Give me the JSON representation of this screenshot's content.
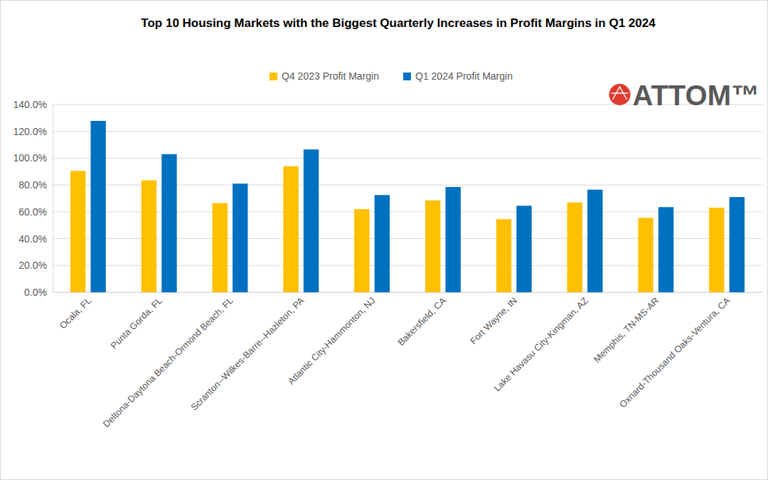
{
  "chart_data": {
    "type": "bar",
    "title": "Top 10 Housing Markets with the Biggest Quarterly Increases in Profit Margins in Q1 2024",
    "annotations": [
      "ATTOM™"
    ],
    "categories": [
      "Ocala, FL",
      "Punta Gorda, FL",
      "Deltona-Daytona Beach-Ormond Beach, FL",
      "Scranton--Wilkes-Barre--Hazleton, PA",
      "Atlantic City-Hammonton, NJ",
      "Bakersfield, CA",
      "Fort Wayne, IN",
      "Lake Havasu City-Kingman, AZ",
      "Memphis, TN-MS-AR",
      "Oxnard-Thousand Oaks-Ventura, CA"
    ],
    "series": [
      {
        "name": "Q4 2023 Profit Margin",
        "color": "#ffc000",
        "values": [
          90.5,
          83.5,
          66.5,
          94.0,
          62.0,
          68.5,
          54.5,
          67.0,
          55.5,
          63.0
        ]
      },
      {
        "name": "Q1 2024 Profit Margin",
        "color": "#0070c0",
        "values": [
          127.8,
          103.0,
          81.0,
          106.5,
          72.5,
          78.5,
          64.5,
          76.5,
          63.5,
          71.0
        ]
      }
    ],
    "ylim": [
      0,
      140
    ],
    "yticks": [
      {
        "value": 0,
        "label": "0.0%"
      },
      {
        "value": 20,
        "label": "20.0%"
      },
      {
        "value": 40,
        "label": "40.0%"
      },
      {
        "value": 60,
        "label": "60.0%"
      },
      {
        "value": 80,
        "label": "80.0%"
      },
      {
        "value": 100,
        "label": "100.0%"
      },
      {
        "value": 120,
        "label": "120.0%"
      },
      {
        "value": 140,
        "label": "140.0%"
      }
    ],
    "grid": true,
    "legend": "top"
  }
}
